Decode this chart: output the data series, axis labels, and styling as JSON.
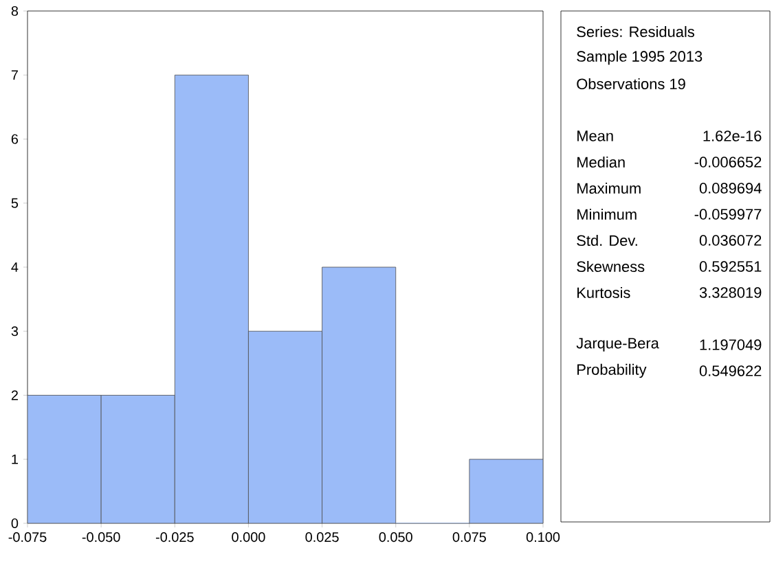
{
  "chart_data": [
    {
      "type": "histogram",
      "bins": [
        -0.075,
        -0.05,
        -0.025,
        0.0,
        0.025,
        0.05,
        0.075,
        0.1
      ],
      "values": [
        2,
        2,
        7,
        3,
        4,
        0,
        1
      ],
      "color": "#9bbbf8",
      "xlim": [
        -0.075,
        0.1
      ],
      "xticks": [
        {
          "value": -0.075,
          "label": "-0.075"
        },
        {
          "value": -0.05,
          "label": "-0.050"
        },
        {
          "value": -0.025,
          "label": "-0.025"
        },
        {
          "value": 0.0,
          "label": "0.000"
        },
        {
          "value": 0.025,
          "label": "0.025"
        },
        {
          "value": 0.05,
          "label": "0.050"
        },
        {
          "value": 0.075,
          "label": "0.075"
        },
        {
          "value": 0.1,
          "label": "0.100"
        }
      ],
      "ylim": [
        0,
        8
      ],
      "yticks": [
        0,
        1,
        2,
        3,
        4,
        5,
        6,
        7,
        8
      ],
      "grid": false
    },
    {
      "type": "other",
      "annotations": [
        "Series: Residuals",
        "Sample 1995 2013",
        "Observations 19",
        "Mean",
        "1.62e-16",
        "Median",
        "-0.006652",
        "Maximum",
        "0.089694",
        "Minimum",
        "-0.059977",
        "Std. Dev.",
        "0.036072",
        "Skewness",
        "0.592551",
        "Kurtosis",
        "3.328019",
        "Jarque-Bera",
        "1.197049",
        "Probability",
        "0.549622"
      ]
    }
  ]
}
